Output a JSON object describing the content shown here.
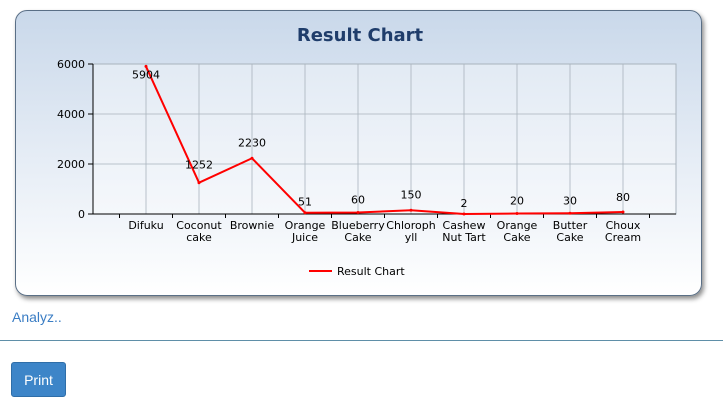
{
  "chart_data": {
    "type": "line",
    "title": "Result Chart",
    "categories": [
      [
        "Difuku"
      ],
      [
        "Coconut",
        "cake"
      ],
      [
        "Brownie"
      ],
      [
        "Orange",
        "Juice"
      ],
      [
        "Blueberry",
        "Cake"
      ],
      [
        "Chloroph",
        "yll"
      ],
      [
        "Cashew",
        "Nut Tart"
      ],
      [
        "Orange",
        "Cake"
      ],
      [
        "Butter",
        "Cake"
      ],
      [
        "Choux",
        "Cream"
      ]
    ],
    "series": [
      {
        "name": "Result Chart",
        "values": [
          5904,
          1252,
          2230,
          51,
          60,
          150,
          2,
          20,
          30,
          80
        ]
      }
    ],
    "data_labels": [
      "5904",
      "1252",
      "2230",
      "51",
      "60",
      "150",
      "2",
      "20",
      "30",
      "80"
    ],
    "yticks": [
      "0",
      "2000",
      "4000",
      "6000"
    ],
    "ylim": [
      0,
      6000
    ],
    "grid": true,
    "legend": "bottom",
    "line_color": "#ff0000"
  },
  "links": {
    "analyz": "Analyz.."
  },
  "actions": {
    "print_label": "Print"
  }
}
